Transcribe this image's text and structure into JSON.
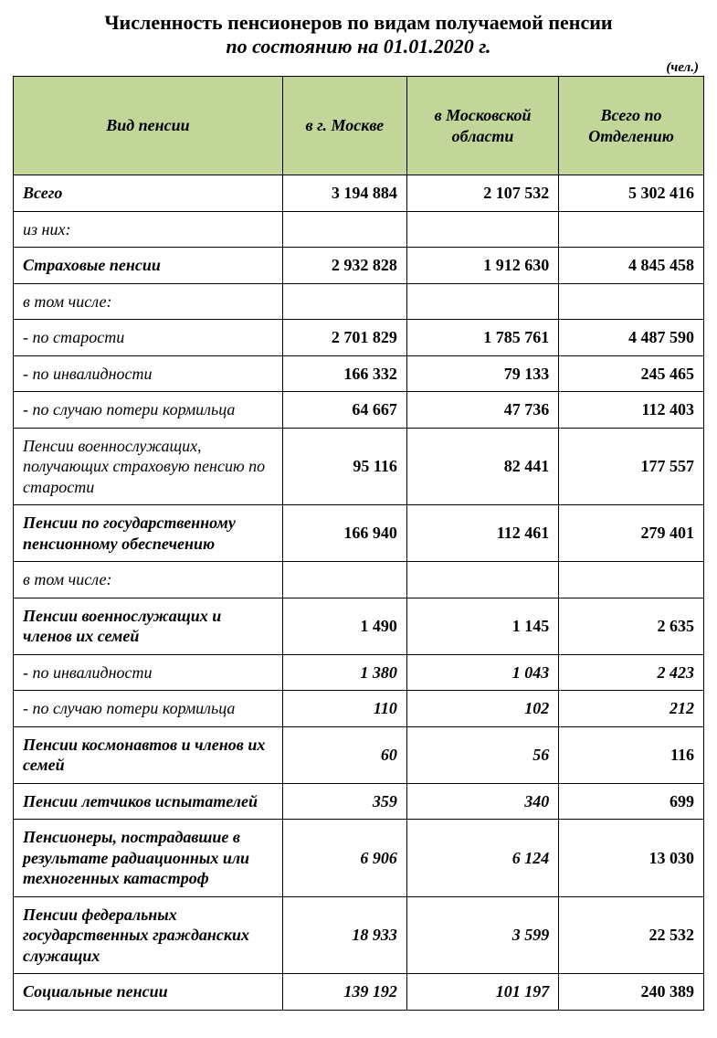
{
  "title": {
    "line1": "Численность пенсионеров по видам получаемой пенсии",
    "line2": "по состоянию на 01.01.2020 г."
  },
  "unit": "(чел.)",
  "columns": {
    "c0": "Вид пенсии",
    "c1": "в г. Москве",
    "c2": "в Московской области",
    "c3": "Всего по Отделению"
  },
  "header_bg": "#c2d69a",
  "border_color": "#000000",
  "rows": [
    {
      "label": "Всего",
      "bold": true,
      "v1": "3 194 884",
      "v2": "2 107 532",
      "v3": "5 302 416",
      "ital": false
    },
    {
      "label": "из них:",
      "bold": false,
      "v1": "",
      "v2": "",
      "v3": "",
      "ital": false
    },
    {
      "label": "Страховые пенсии",
      "bold": true,
      "v1": "2 932 828",
      "v2": "1 912 630",
      "v3": "4 845 458",
      "ital": false
    },
    {
      "label": "в том числе:",
      "bold": false,
      "v1": "",
      "v2": "",
      "v3": "",
      "ital": false
    },
    {
      "label": "- по старости",
      "bold": false,
      "v1": "2 701 829",
      "v2": "1 785 761",
      "v3": "4 487 590",
      "ital": false
    },
    {
      "label": "- по инвалидности",
      "bold": false,
      "v1": "166 332",
      "v2": "79 133",
      "v3": "245 465",
      "ital": false
    },
    {
      "label": "- по случаю потери кормильца",
      "bold": false,
      "v1": "64 667",
      "v2": "47 736",
      "v3": "112 403",
      "ital": false
    },
    {
      "label": "Пенсии военнослужащих, получающих страховую пенсию по старости",
      "bold": false,
      "v1": "95 116",
      "v2": "82 441",
      "v3": "177 557",
      "ital": false
    },
    {
      "label": "Пенсии по государственному пенсионному обеспечению",
      "bold": true,
      "v1": "166 940",
      "v2": "112 461",
      "v3": "279 401",
      "ital": false
    },
    {
      "label": "в том числе:",
      "bold": false,
      "v1": "",
      "v2": "",
      "v3": "",
      "ital": false
    },
    {
      "label": "Пенсии военнослужащих и членов их семей",
      "bold": true,
      "v1": "1 490",
      "v2": "1 145",
      "v3": "2 635",
      "ital": false
    },
    {
      "label": "- по инвалидности",
      "bold": false,
      "v1": "1 380",
      "v2": "1 043",
      "v3": "2 423",
      "ital": true
    },
    {
      "label": "- по случаю потери кормильца",
      "bold": false,
      "v1": "110",
      "v2": "102",
      "v3": "212",
      "ital": true
    },
    {
      "label": "Пенсии космонавтов и членов их семей",
      "bold": true,
      "v1": "60",
      "v2": "56",
      "v3": "116",
      "ital_partial": true
    },
    {
      "label": "Пенсии летчиков испытателей",
      "bold": true,
      "v1": "359",
      "v2": "340",
      "v3": "699",
      "ital_partial": true
    },
    {
      "label": "Пенсионеры, пострадавшие в результате радиационных или техногенных катастроф",
      "bold": true,
      "v1": "6 906",
      "v2": "6 124",
      "v3": "13 030",
      "ital_partial": true
    },
    {
      "label": "Пенсии федеральных государственных гражданских служащих",
      "bold": true,
      "v1": "18 933",
      "v2": "3 599",
      "v3": "22 532",
      "ital_partial": true
    },
    {
      "label": "Социальные пенсии",
      "bold": true,
      "v1": "139 192",
      "v2": "101 197",
      "v3": "240 389",
      "ital_partial": true
    }
  ]
}
